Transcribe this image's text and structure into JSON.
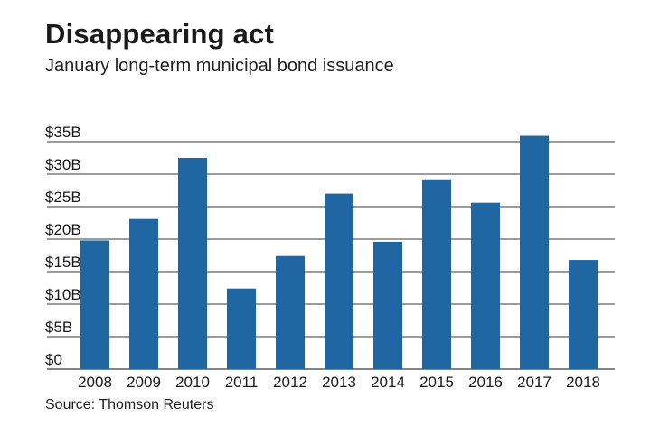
{
  "chart_data": {
    "type": "bar",
    "title": "Disappearing act",
    "subtitle": "January long-term municipal bond issuance",
    "source": "Source: Thomson Reuters",
    "categories": [
      "2008",
      "2009",
      "2010",
      "2011",
      "2012",
      "2013",
      "2014",
      "2015",
      "2016",
      "2017",
      "2018"
    ],
    "values": [
      19.8,
      23.1,
      32.5,
      12.4,
      17.4,
      27.0,
      19.6,
      29.2,
      25.6,
      35.9,
      16.8
    ],
    "ylim": [
      0,
      35
    ],
    "yticks": [
      0,
      5,
      10,
      15,
      20,
      25,
      30,
      35
    ],
    "ytick_labels": [
      "$0",
      "$5B",
      "$10B",
      "$15B",
      "$20B",
      "$25B",
      "$30B",
      "$35B"
    ],
    "xlabel": "",
    "ylabel": "",
    "grid": true,
    "bar_color": "#1f66a3",
    "grid_color": "#3a3a3a"
  }
}
